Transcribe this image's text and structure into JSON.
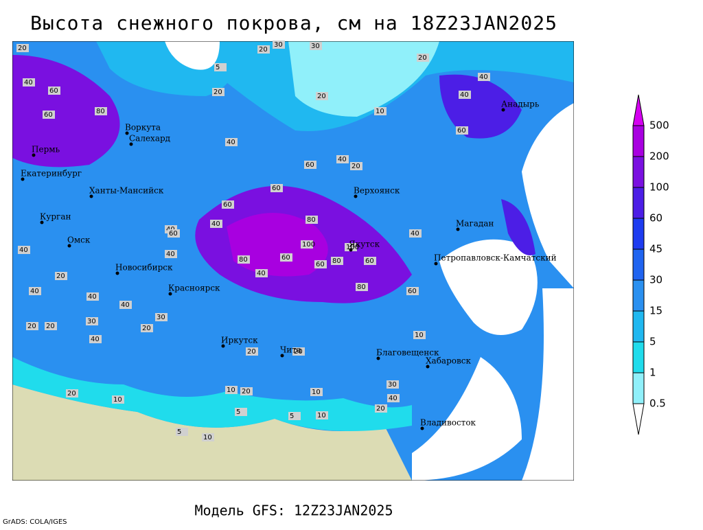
{
  "header": {
    "title": "Высота снежного покрова, см на 18Z23JAN2025"
  },
  "footer": {
    "model": "Модель GFS: 12Z23JAN2025",
    "credit": "GrADS: COLA/IGES"
  },
  "cities": [
    "Анадырь",
    "Воркута",
    "Салехард",
    "Пермь",
    "Екатеринбург",
    "Ханты-Мансийск",
    "Верхоянск",
    "Курган",
    "Магадан",
    "Омск",
    "Якутск",
    "Петропавловск-Камчатский",
    "Новосибирск",
    "Красноярск",
    "Иркутск",
    "Чита",
    "Благовещенск",
    "Хабаровск",
    "Владивосток"
  ],
  "contour_labels": [
    20,
    30,
    30,
    20,
    5,
    20,
    40,
    60,
    80,
    60,
    20,
    10,
    20,
    40,
    40,
    40,
    60,
    40,
    20,
    60,
    60,
    40,
    40,
    60,
    80,
    100,
    100,
    80,
    60,
    40,
    60,
    60,
    40,
    80,
    80,
    60,
    40,
    40,
    20,
    30,
    20,
    20,
    40,
    20,
    30,
    20,
    10,
    20,
    5,
    10,
    20,
    10,
    5,
    10,
    20,
    40,
    10,
    20,
    5,
    40,
    30,
    10,
    60,
    40,
    40
  ],
  "legend": {
    "levels": [
      0.5,
      1,
      5,
      15,
      30,
      45,
      60,
      100,
      200,
      500
    ],
    "colors": [
      "#ffffff",
      "#90f0fa",
      "#20dcec",
      "#20b8f0",
      "#2a90f0",
      "#2064f0",
      "#1e3cf0",
      "#4c1ee6",
      "#7a10e0",
      "#a800e0",
      "#d400f0"
    ]
  }
}
